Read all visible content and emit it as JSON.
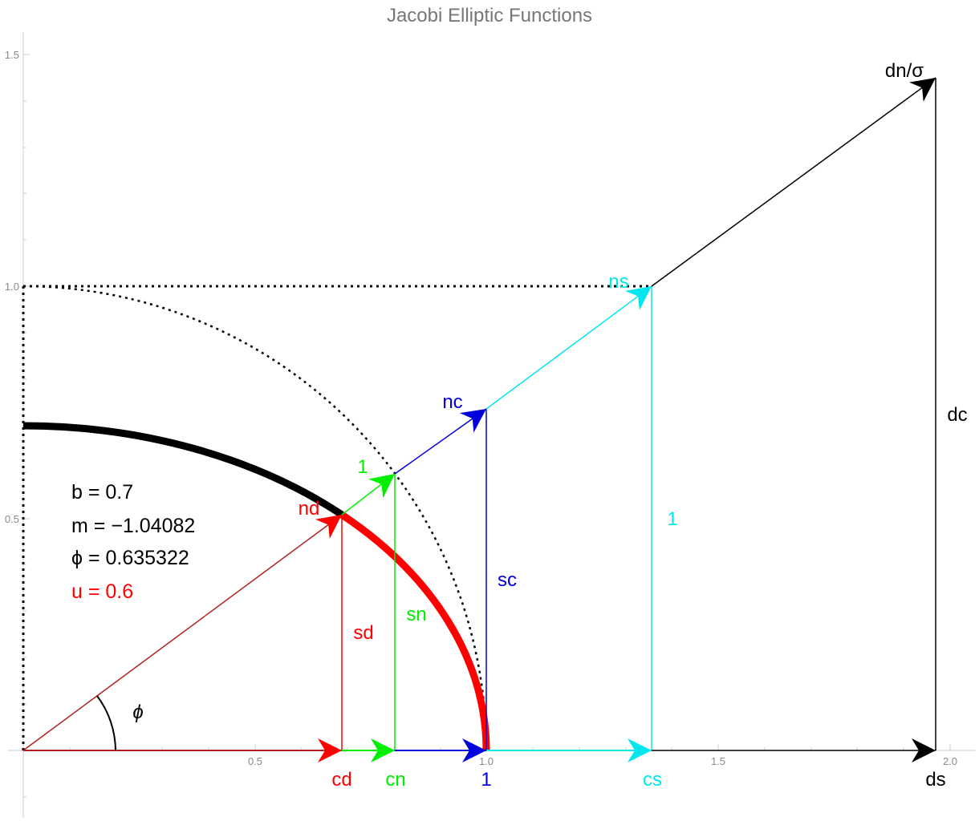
{
  "title": "Jacobi Elliptic Functions",
  "axes": {
    "x_ticks": [
      "0.5",
      "1.0",
      "1.5",
      "2.0"
    ],
    "y_ticks": [
      "0.5",
      "1.0",
      "1.5"
    ]
  },
  "parameters": {
    "b": "b =  0.7",
    "m": "m = −1.04082",
    "phi": "ϕ = 0.635322",
    "u": "u = 0.6"
  },
  "labels": {
    "cd": "cd",
    "cn": "cn",
    "one_bottom": "1",
    "cs": "cs",
    "ds": "ds",
    "nd": "nd",
    "one_green": "1",
    "nc": "nc",
    "ns": "ns",
    "dn_sigma": "dn/σ",
    "sd": "sd",
    "sn": "sn",
    "sc": "sc",
    "one_cyan": "1",
    "dc": "dc",
    "phi_angle": "ϕ"
  },
  "colors": {
    "red": "#ff0000",
    "green": "#00ee00",
    "blue": "#0000dd",
    "cyan": "#00e8ee",
    "black": "#000000",
    "darkred": "#b22222"
  }
}
